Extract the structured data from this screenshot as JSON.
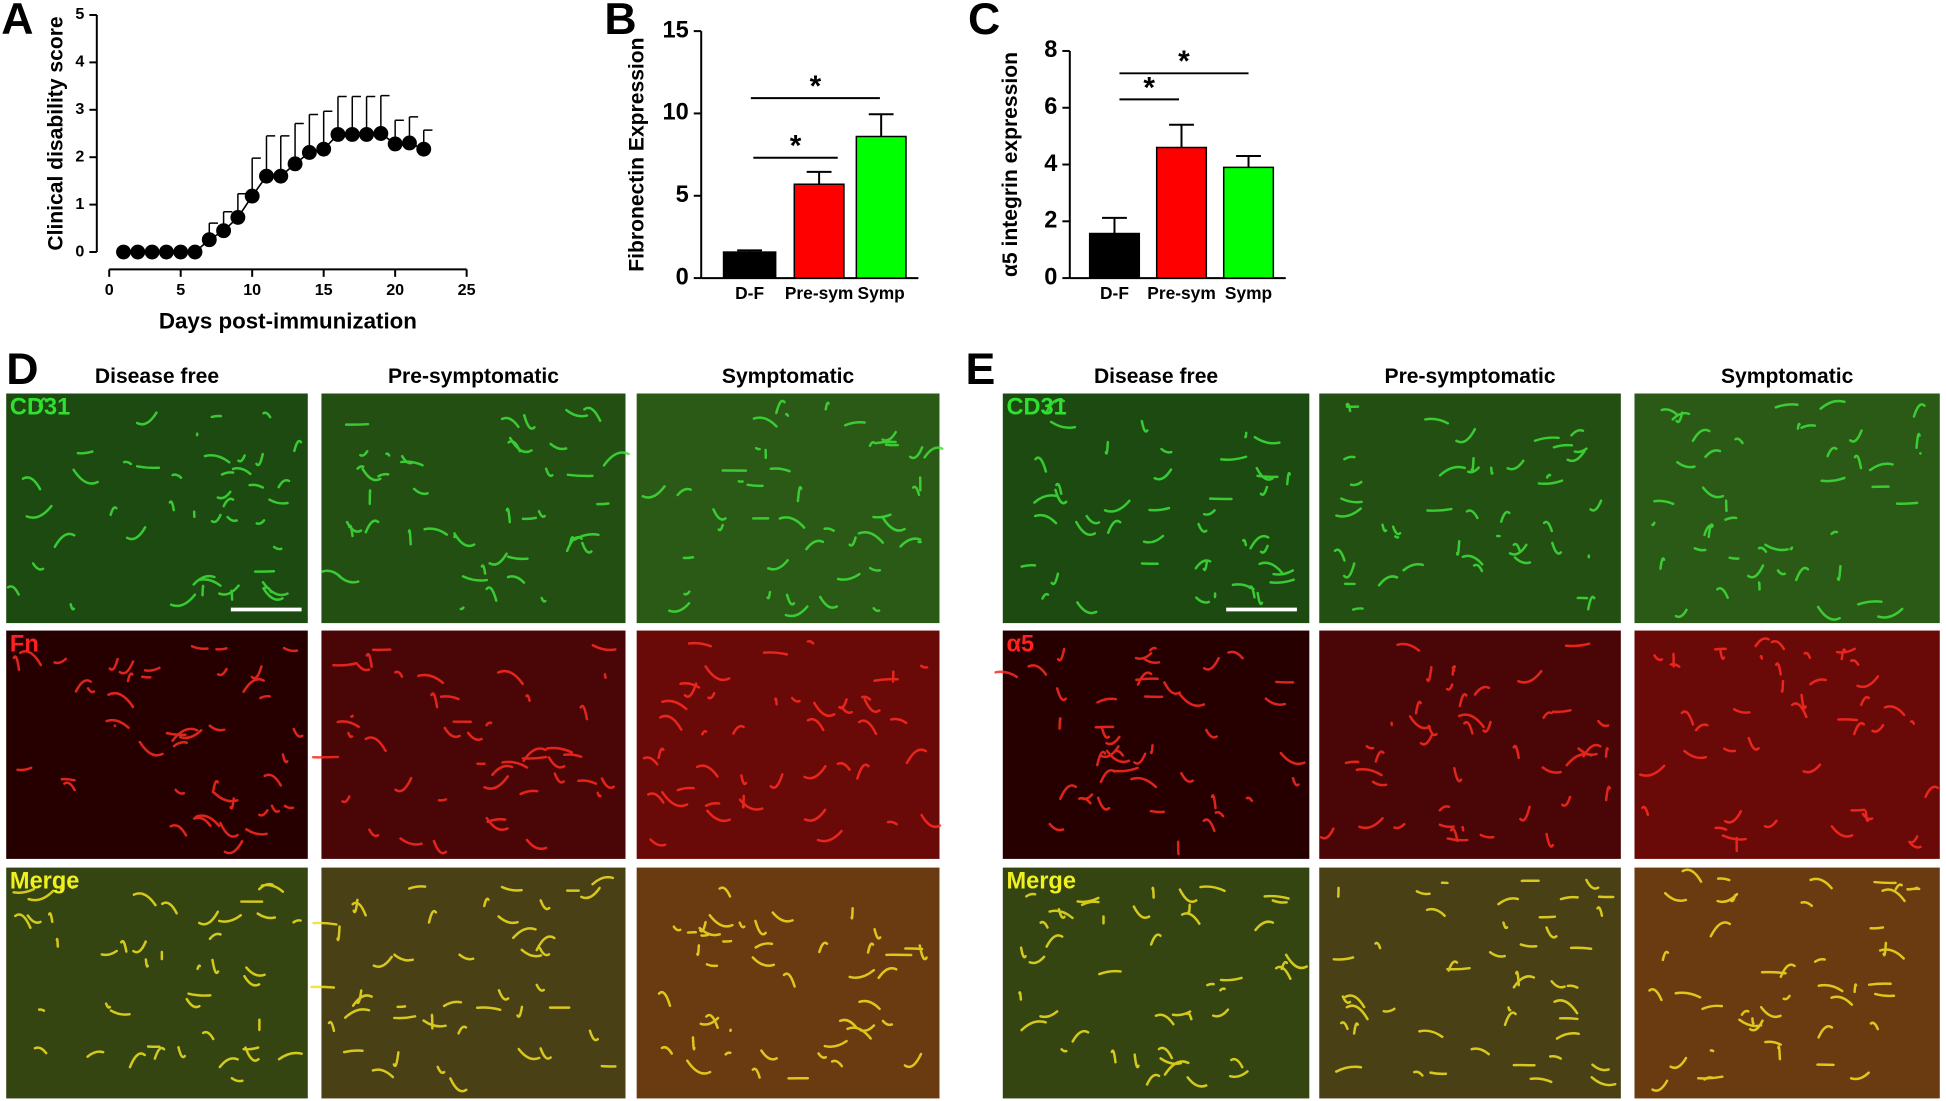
{
  "chart_data": [
    {
      "type": "line",
      "panel_label": "A",
      "xlabel": "Days post-immunization",
      "ylabel": "Clinical disability score",
      "x": [
        1,
        2,
        3,
        4,
        5,
        6,
        7,
        8,
        9,
        10,
        11,
        12,
        13,
        14,
        15,
        16,
        17,
        18,
        19,
        20,
        21,
        22
      ],
      "values": [
        0,
        0,
        0,
        0,
        0,
        0,
        0.26,
        0.45,
        0.73,
        1.18,
        1.6,
        1.6,
        1.86,
        2.1,
        2.17,
        2.48,
        2.48,
        2.48,
        2.5,
        2.28,
        2.3,
        2.17
      ],
      "errors": [
        0,
        0,
        0,
        0,
        0,
        0,
        0.35,
        0.4,
        0.5,
        0.8,
        0.85,
        0.85,
        0.85,
        0.8,
        0.8,
        0.8,
        0.8,
        0.8,
        0.8,
        0.5,
        0.55,
        0.4
      ],
      "color": "#000000",
      "xlim": [
        0,
        25
      ],
      "xticks": [
        0,
        5,
        10,
        15,
        20,
        25
      ],
      "ylim": [
        0,
        5
      ],
      "yticks": [
        0,
        1,
        2,
        3,
        4,
        5
      ]
    },
    {
      "type": "bar",
      "panel_label": "B",
      "ylabel": "Fibronectin Expression",
      "categories": [
        "D-F",
        "Pre-sym",
        "Symp"
      ],
      "values": [
        1.58,
        5.7,
        8.6
      ],
      "errors": [
        0.1,
        0.75,
        1.35
      ],
      "colors": [
        "#000000",
        "#ff0000",
        "#00ff00"
      ],
      "ylim": [
        0,
        15
      ],
      "yticks": [
        0,
        5,
        10,
        15
      ],
      "annotations": [
        "*",
        "*"
      ]
    },
    {
      "type": "bar",
      "panel_label": "C",
      "ylabel": "α5 integrin expression",
      "categories": [
        "D-F",
        "Pre-sym",
        "Symp"
      ],
      "values": [
        1.57,
        4.6,
        3.9
      ],
      "errors": [
        0.55,
        0.8,
        0.4
      ],
      "colors": [
        "#000000",
        "#ff0000",
        "#00ff00"
      ],
      "ylim": [
        0,
        8
      ],
      "yticks": [
        0,
        2,
        4,
        6,
        8
      ],
      "annotations": [
        "*",
        "*"
      ]
    }
  ],
  "panels": [
    {
      "label": "D",
      "columns": [
        "Disease free",
        "Pre-symptomatic",
        "Symptomatic"
      ],
      "rows": [
        "CD31",
        "Fn",
        "Merge"
      ]
    },
    {
      "label": "E",
      "columns": [
        "Disease free",
        "Pre-symptomatic",
        "Symptomatic"
      ],
      "rows": [
        "CD31",
        "α5",
        "Merge"
      ]
    }
  ]
}
